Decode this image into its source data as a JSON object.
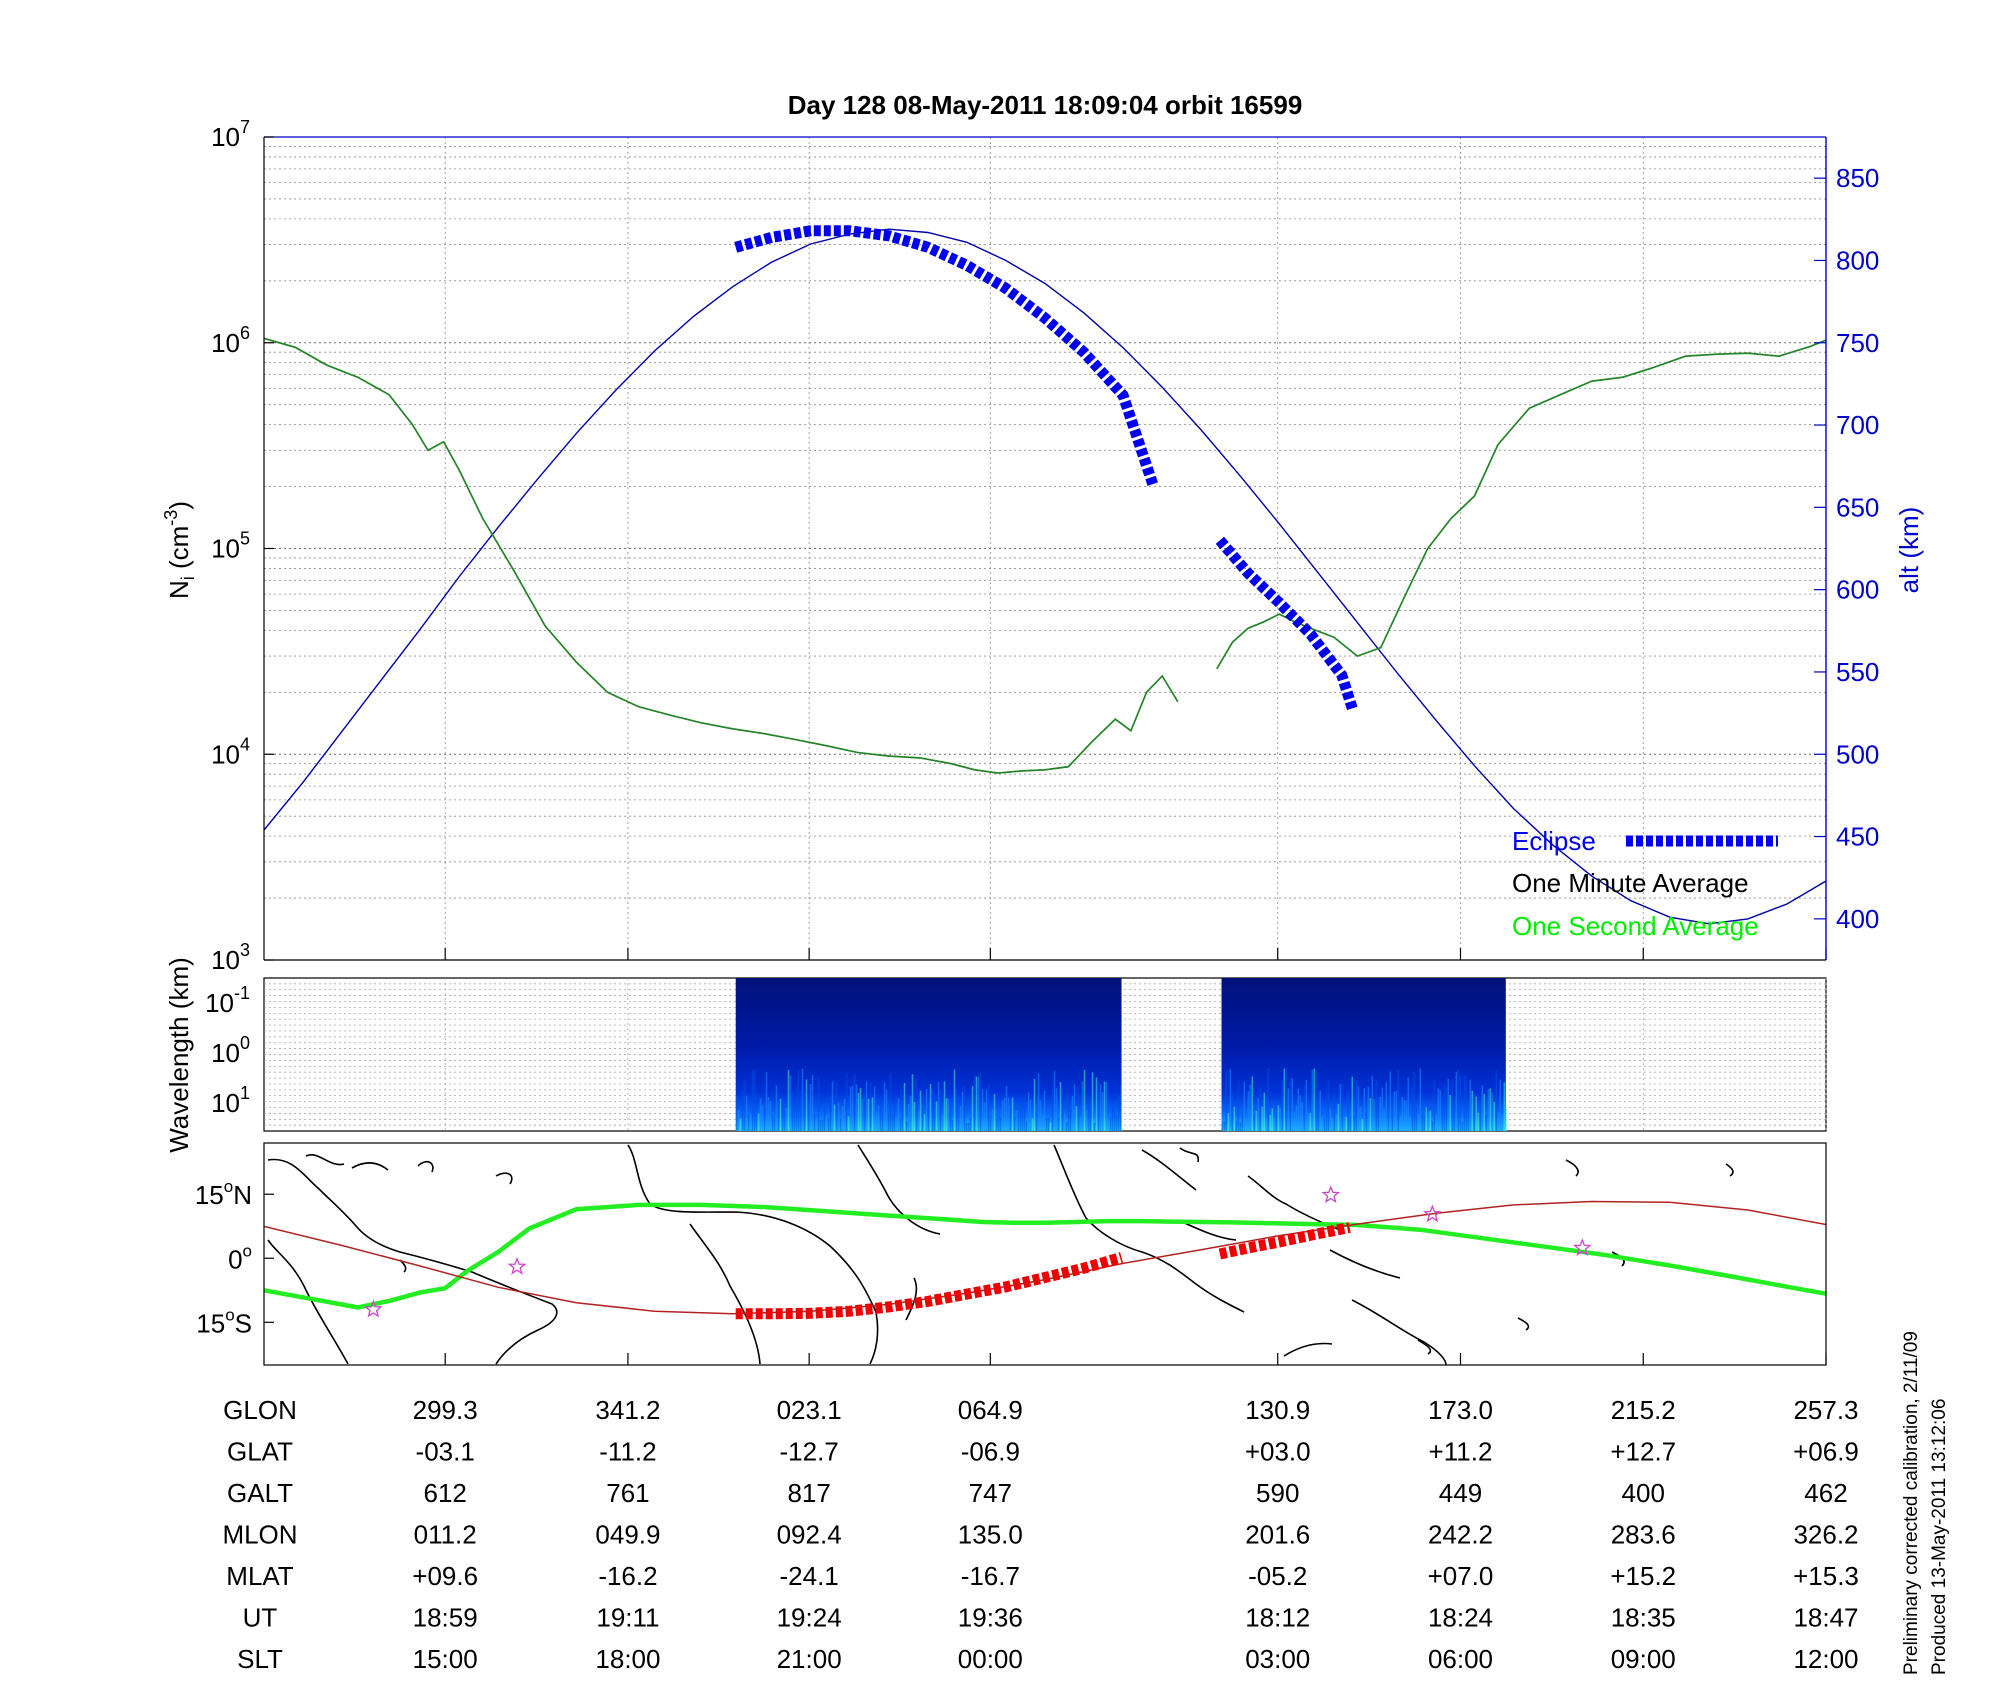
{
  "title": "Day 128  08-May-2011 18:09:04   orbit 16599",
  "colors": {
    "altitude_line": "#0000aa",
    "eclipse": "#0000ee",
    "one_minute_average": "#000000",
    "one_second_average": "#00ff00",
    "density_line": "#2e7d32",
    "satellite_track": "#b22222",
    "eclipse_track": "#ee0000",
    "dip_equator": "#22ee22",
    "stars": "#cc44cc"
  },
  "chart_data": [
    {
      "id": "density",
      "type": "line",
      "ylabel": "N",
      "ylabel_sub": "i",
      "ylabel_unit_open": " (cm",
      "ylabel_unit_sup": "-3",
      "ylabel_unit_close": ")",
      "y_scale": "log",
      "ylim": [
        1000,
        10000000
      ],
      "y_ticks": [
        {
          "base": "10",
          "exp": "3"
        },
        {
          "base": "10",
          "exp": "4"
        },
        {
          "base": "10",
          "exp": "5"
        },
        {
          "base": "10",
          "exp": "6"
        },
        {
          "base": "10",
          "exp": "7"
        }
      ],
      "y2label": "alt (km)",
      "y2lim": [
        375,
        875
      ],
      "y2_ticks": [
        "400",
        "450",
        "500",
        "550",
        "600",
        "650",
        "700",
        "750",
        "800",
        "850"
      ],
      "xlim": [
        0,
        100
      ],
      "grid": true,
      "legend_placement": "bottom-right",
      "legend": {
        "eclipse": "Eclipse",
        "one_minute": "One Minute Average",
        "one_second": "One Second Average"
      },
      "series": [
        {
          "name": "alt (km)",
          "axis": "right",
          "x": [
            0,
            2.5,
            5,
            7.5,
            10,
            12.5,
            15,
            17.5,
            20,
            22.5,
            25,
            27.5,
            30,
            32.5,
            35,
            37.5,
            40,
            42.5,
            45,
            47.5,
            50,
            52.5,
            55,
            57.5,
            60,
            62.5,
            65,
            67.5,
            70,
            72.5,
            75,
            77.5,
            80,
            82.5,
            85,
            87.5,
            90,
            92.5,
            95,
            97.5,
            100
          ],
          "values": [
            454,
            483,
            514,
            545,
            576,
            608,
            638,
            667,
            695,
            721,
            745,
            766,
            784,
            799,
            810,
            816,
            819,
            817,
            811,
            800,
            786,
            768,
            747,
            723,
            697,
            669,
            640,
            610,
            580,
            550,
            521,
            493,
            467,
            445,
            426,
            411,
            401,
            397,
            400,
            409,
            423
          ]
        },
        {
          "name": "One Minute Average",
          "axis": "left",
          "x": [
            0,
            2,
            4,
            6,
            8,
            9.5,
            10.5,
            11.5,
            12.5,
            14,
            16,
            18,
            20,
            22,
            24,
            26,
            28,
            30,
            32,
            34,
            36,
            38,
            40,
            42,
            44,
            45.5,
            47,
            48.5,
            50,
            51.5,
            53,
            54.5,
            55.5,
            56.5,
            57.5,
            58.5,
            60,
            61,
            62,
            63,
            64,
            65,
            66,
            67,
            68.5,
            70,
            71.5,
            73,
            74.5,
            76,
            77.5,
            79,
            81,
            83,
            85,
            87,
            89,
            91,
            93,
            95,
            97,
            99,
            100
          ],
          "values": [
            1050000,
            950000,
            780000,
            680000,
            560000,
            400000,
            300000,
            330000,
            240000,
            140000,
            78000,
            42000,
            28000,
            20000,
            17000,
            15500,
            14200,
            13300,
            12600,
            11800,
            11000,
            10200,
            9800,
            9600,
            9000,
            8400,
            8100,
            8300,
            8400,
            8700,
            11500,
            14800,
            13000,
            20000,
            24000,
            18000,
            null,
            26000,
            35000,
            41000,
            44000,
            48000,
            44000,
            41000,
            37000,
            30000,
            33000,
            58000,
            100000,
            140000,
            180000,
            320000,
            480000,
            560000,
            650000,
            680000,
            760000,
            860000,
            880000,
            890000,
            860000,
            960000,
            1030000
          ]
        },
        {
          "name": "One Second Average",
          "axis": "left",
          "x": [
            0,
            2,
            4,
            6,
            8,
            9.5,
            10.5,
            11.5,
            12.5,
            14,
            16,
            18,
            20,
            22,
            24,
            26,
            28,
            30,
            32,
            34,
            36,
            38,
            40,
            42,
            44,
            45.5,
            47,
            48.5,
            50,
            51.5,
            53,
            54.5,
            55.5,
            56.5,
            57.5,
            58.5,
            60,
            61,
            62,
            63,
            64,
            65,
            66,
            67,
            68.5,
            70,
            71.5,
            73,
            74.5,
            76,
            77.5,
            79,
            81,
            83,
            85,
            87,
            89,
            91,
            93,
            95,
            97,
            99,
            100
          ],
          "values": [
            1050000,
            950000,
            780000,
            680000,
            560000,
            400000,
            300000,
            330000,
            240000,
            140000,
            78000,
            42000,
            28000,
            20000,
            17000,
            15500,
            14200,
            13300,
            12600,
            11800,
            11000,
            10200,
            9800,
            9600,
            9000,
            8400,
            8100,
            8300,
            8400,
            8700,
            11500,
            14800,
            13000,
            20000,
            24000,
            18000,
            null,
            26000,
            35000,
            41000,
            44000,
            48000,
            44000,
            41000,
            37000,
            30000,
            33000,
            58000,
            100000,
            140000,
            180000,
            320000,
            480000,
            560000,
            650000,
            680000,
            760000,
            860000,
            880000,
            890000,
            860000,
            960000,
            1030000
          ]
        },
        {
          "name": "Eclipse",
          "axis": "right",
          "x": [
            30.2,
            32.5,
            35,
            37.5,
            40,
            42.5,
            45,
            47.5,
            50,
            52.5,
            55,
            56.9,
            null,
            61.2,
            63,
            65,
            67,
            69,
            69.7
          ],
          "values": [
            808,
            814,
            818,
            818,
            815,
            808,
            797,
            783,
            765,
            744,
            718,
            664,
            null,
            630,
            610,
            592,
            573,
            548,
            527
          ]
        }
      ]
    },
    {
      "id": "spectrogram",
      "type": "heatmap",
      "ylabel": "Wavelength (km)",
      "y_scale": "log",
      "y_ticks": [
        {
          "base": "10",
          "exp": "-1"
        },
        {
          "base": "10",
          "exp": "0"
        },
        {
          "base": "10",
          "exp": "1"
        }
      ],
      "segments": [
        {
          "x": [
            30.2,
            54.9
          ],
          "colormap": "jet"
        },
        {
          "x": [
            61.3,
            79.5
          ],
          "colormap": "jet"
        }
      ]
    },
    {
      "id": "map",
      "type": "line",
      "yticks": [
        {
          "value": 15,
          "label": "15",
          "deg": "o",
          "hemi": "N"
        },
        {
          "value": 0,
          "label": "0",
          "deg": "o",
          "hemi": ""
        },
        {
          "value": -15,
          "label": "15",
          "deg": "o",
          "hemi": "S"
        }
      ],
      "ylim": [
        -25,
        27
      ],
      "series": [
        {
          "name": "dip equator",
          "x": [
            0,
            3,
            6,
            8,
            10,
            11.6,
            13,
            15,
            17,
            20,
            24,
            28,
            32,
            36,
            40,
            44,
            46,
            48,
            50,
            52,
            54,
            56,
            58,
            62,
            66,
            70,
            74,
            78,
            82,
            86,
            90,
            94,
            98,
            100
          ],
          "values": [
            -7.5,
            -9.5,
            -11.5,
            -10,
            -8,
            -7,
            -3,
            1.5,
            7,
            11.5,
            12.5,
            12.5,
            12,
            11,
            10,
            9,
            8.5,
            8.3,
            8.3,
            8.5,
            8.7,
            8.7,
            8.6,
            8.4,
            8.1,
            7.8,
            6.7,
            4.7,
            2.7,
            0.7,
            -1.7,
            -4.3,
            -7,
            -8.3
          ]
        },
        {
          "name": "satellite track",
          "x": [
            0,
            5,
            10,
            15,
            20,
            25,
            30,
            35,
            40,
            45,
            50,
            55,
            60,
            65,
            70,
            75,
            80,
            85,
            90,
            95,
            100
          ],
          "values": [
            7.5,
            3,
            -1.8,
            -6.8,
            -10.4,
            -12.4,
            -13,
            -12.4,
            -10.8,
            -8.2,
            -5,
            -1.2,
            2,
            5.3,
            8,
            10.5,
            12.5,
            13.3,
            13.1,
            11.3,
            7.9
          ]
        },
        {
          "name": "eclipse track",
          "x": [
            30.2,
            32.5,
            35,
            37.5,
            40,
            42.5,
            45,
            47.5,
            50,
            52.5,
            54.9,
            null,
            61.2,
            63,
            65,
            67,
            69.5
          ],
          "values": [
            -13,
            -13,
            -12.9,
            -12.4,
            -11.4,
            -10.1,
            -8.4,
            -6.7,
            -4.5,
            -2.3,
            0.2,
            null,
            1,
            2.4,
            3.8,
            5.4,
            7.2
          ]
        }
      ],
      "stars": [
        {
          "x": 7,
          "y": -12
        },
        {
          "x": 16.2,
          "y": -2
        },
        {
          "x": 68.3,
          "y": 14.8
        },
        {
          "x": 74.8,
          "y": 10.3
        },
        {
          "x": 84.4,
          "y": 2.4
        }
      ]
    }
  ],
  "x_ticks": [
    11.6,
    23.3,
    34.9,
    46.5,
    64.9,
    76.6,
    88.3,
    100
  ],
  "table": {
    "row_labels": [
      "GLON",
      "GLAT",
      "GALT",
      "MLON",
      "MLAT",
      "UT",
      "SLT"
    ],
    "rows": [
      [
        "299.3",
        "341.2",
        "023.1",
        "064.9",
        "130.9",
        "173.0",
        "215.2",
        "257.3"
      ],
      [
        "-03.1",
        "-11.2",
        "-12.7",
        "-06.9",
        "+03.0",
        "+11.2",
        "+12.7",
        "+06.9"
      ],
      [
        "612",
        "761",
        "817",
        "747",
        "590",
        "449",
        "400",
        "462"
      ],
      [
        "011.2",
        "049.9",
        "092.4",
        "135.0",
        "201.6",
        "242.2",
        "283.6",
        "326.2"
      ],
      [
        "+09.6",
        "-16.2",
        "-24.1",
        "-16.7",
        "-05.2",
        "+07.0",
        "+15.2",
        "+15.3"
      ],
      [
        "18:59",
        "19:11",
        "19:24",
        "19:36",
        "18:12",
        "18:24",
        "18:35",
        "18:47"
      ],
      [
        "15:00",
        "18:00",
        "21:00",
        "00:00",
        "03:00",
        "06:00",
        "09:00",
        "12:00"
      ]
    ]
  },
  "notes": {
    "calibration": "Preliminary corrected calibration, 2/11/09",
    "produced": "Produced 13-May-2011 13:12:06"
  }
}
